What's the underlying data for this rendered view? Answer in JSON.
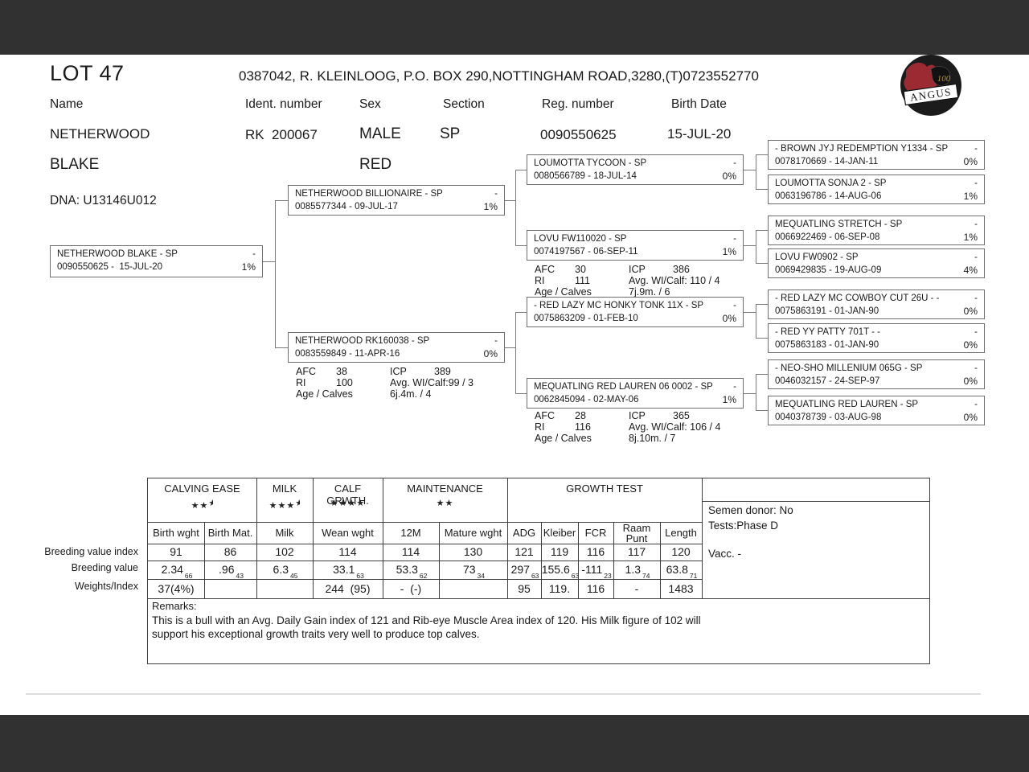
{
  "page": {
    "lot_title": "LOT 47",
    "breeder_line": "0387042, R. KLEINLOOG, P.O. BOX 290,NOTTINGHAM ROAD,3280,(T)0723552770"
  },
  "header": {
    "labels": {
      "name": "Name",
      "ident": "Ident. number",
      "sex": "Sex",
      "section": "Section",
      "reg": "Reg. number",
      "birth": "Birth Date"
    },
    "values": {
      "name_line1": "NETHERWOOD",
      "name_line2": "BLAKE",
      "ident": "RK  200067",
      "sex": "MALE",
      "color": "RED",
      "section": "SP",
      "reg": "0090550625",
      "birth": "15-JUL-20",
      "dna": "DNA: U13146U012"
    }
  },
  "logo": {
    "name": "ANGUS",
    "years": "100"
  },
  "pedigree": {
    "dash": "-",
    "subject": {
      "name": "NETHERWOOD BLAKE - SP",
      "id_date": "0090550625 -  15-JUL-20",
      "pct": "1%"
    },
    "sire": {
      "name": "NETHERWOOD BILLIONAIRE - SP",
      "id_date": "0085577344 - 09-JUL-17",
      "pct": "1%"
    },
    "dam": {
      "name": "NETHERWOOD RK160038 - SP",
      "id_date": "0083559849 - 11-APR-16",
      "pct": "0%"
    },
    "dam_stats": {
      "afc_l": "AFC",
      "afc_v": "38",
      "icp_l": "ICP",
      "icp_v": "389",
      "ri_l": "RI",
      "ri_v": "100",
      "avg": "Avg. WI/Calf:99 / 3",
      "age_l": "Age / Calves",
      "age_v": "6j.4m. / 4"
    },
    "gp1": {
      "name": "LOUMOTTA TYCOON - SP",
      "id_date": "0080566789 - 18-JUL-14",
      "pct": "0%"
    },
    "gp2": {
      "name": "LOVU FW110020 - SP",
      "id_date": "0074197567 - 06-SEP-11",
      "pct": "1%"
    },
    "gp2_stats": {
      "afc_l": "AFC",
      "afc_v": "30",
      "icp_l": "ICP",
      "icp_v": "386",
      "ri_l": "RI",
      "ri_v": "111",
      "avg": "Avg. WI/Calf: 110 / 4",
      "age_l": "Age / Calves",
      "age_v": "7j.9m. / 6"
    },
    "gp3": {
      "name": "- RED LAZY MC HONKY TONK 11X - SP",
      "id_date": "0075863209 - 01-FEB-10",
      "pct": "0%"
    },
    "gp4": {
      "name": "MEQUATLING RED LAUREN 06 0002 - SP",
      "id_date": "0062845094 - 02-MAY-06",
      "pct": "1%"
    },
    "gp4_stats": {
      "afc_l": "AFC",
      "afc_v": "28",
      "icp_l": "ICP",
      "icp_v": "365",
      "ri_l": "RI",
      "ri_v": "116",
      "avg": "Avg. WI/Calf: 106 / 4",
      "age_l": "Age / Calves",
      "age_v": "8j.10m. / 7"
    },
    "ggp1": {
      "name": "- BROWN JYJ REDEMPTION Y1334 - SP",
      "id_date": "0078170669 - 14-JAN-11",
      "pct": "0%"
    },
    "ggp2": {
      "name": "LOUMOTTA SONJA 2 - SP",
      "id_date": "0063196786 - 14-AUG-06",
      "pct": "1%"
    },
    "ggp3": {
      "name": "MEQUATLING STRETCH - SP",
      "id_date": "0066922469 - 06-SEP-08",
      "pct": "1%"
    },
    "ggp4": {
      "name": "LOVU FW0902 - SP",
      "id_date": "0069429835 - 19-AUG-09",
      "pct": "4%"
    },
    "ggp5": {
      "name": "- RED LAZY MC COWBOY CUT 26U - -",
      "id_date": "0075863191 - 01-JAN-90",
      "pct": "0%"
    },
    "ggp6": {
      "name": "- RED YY PATTY 701T - -",
      "id_date": "0075863183 - 01-JAN-90",
      "pct": "0%"
    },
    "ggp7": {
      "name": "- NEO-SHO MILLENIUM 065G - SP",
      "id_date": "0046032157 - 24-SEP-97",
      "pct": "0%"
    },
    "ggp8": {
      "name": "MEQUATLING RED LAUREN - SP",
      "id_date": "0040378739 - 03-AUG-98",
      "pct": "0%"
    }
  },
  "table": {
    "groups": [
      {
        "label": "CALVING EASE",
        "stars": 2.5
      },
      {
        "label": "MILK",
        "stars": 3.5
      },
      {
        "label": "CALF GRWTH.",
        "stars": 4
      },
      {
        "label": "MAINTENANCE",
        "stars": 2
      },
      {
        "label": "GROWTH TEST",
        "stars": 0
      }
    ],
    "columns": [
      "Birth wght",
      "Birth Mat.",
      "Milk",
      "Wean wght",
      "12M",
      "Mature wght",
      "ADG",
      "Kleiber",
      "FCR",
      "Raam Punt",
      "Length"
    ],
    "row_labels": [
      "Breeding value index",
      "Breeding value",
      "Weights/Index"
    ],
    "index_row": [
      "91",
      "86",
      "102",
      "114",
      "114",
      "130",
      "121",
      "119",
      "116",
      "117",
      "120"
    ],
    "value_row": [
      {
        "v": "2.34",
        "s": "66"
      },
      {
        "v": ".96",
        "s": "43"
      },
      {
        "v": "6.3",
        "s": "45"
      },
      {
        "v": "33.1",
        "s": "63"
      },
      {
        "v": "53.3",
        "s": "62"
      },
      {
        "v": "73",
        "s": "34"
      },
      {
        "v": "297",
        "s": "63"
      },
      {
        "v": "155.6",
        "s": "63"
      },
      {
        "v": "-111",
        "s": "23"
      },
      {
        "v": "1.3",
        "s": "74"
      },
      {
        "v": "63.8",
        "s": "71"
      }
    ],
    "weights_row": [
      "37(4%)",
      "",
      "",
      "244  (95)",
      "-  (-)",
      "",
      "95",
      "119.",
      "116",
      "-",
      "1483"
    ],
    "info": {
      "semen": "Semen donor: No",
      "tests": "Tests:Phase D",
      "vacc": "Vacc. -"
    },
    "remarks_label": "Remarks:",
    "remarks_text": "This is a bull with an Avg. Daily Gain index of 121 and Rib-eye Muscle Area index of 120. His Milk figure of 102 will\nsupport his exceptional growth traits very well to produce top calves."
  }
}
